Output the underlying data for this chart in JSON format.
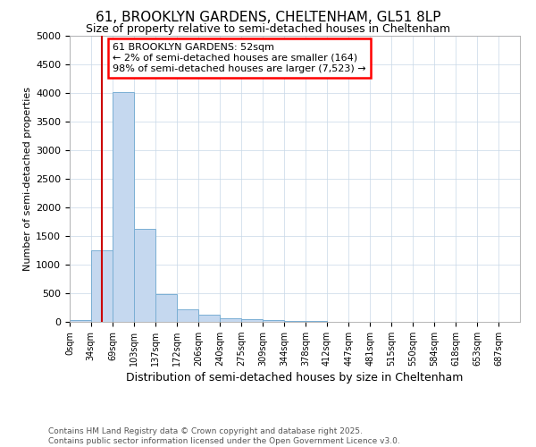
{
  "title1": "61, BROOKLYN GARDENS, CHELTENHAM, GL51 8LP",
  "title2": "Size of property relative to semi-detached houses in Cheltenham",
  "xlabel": "Distribution of semi-detached houses by size in Cheltenham",
  "ylabel": "Number of semi-detached properties",
  "footer1": "Contains HM Land Registry data © Crown copyright and database right 2025.",
  "footer2": "Contains public sector information licensed under the Open Government Licence v3.0.",
  "annotation_line1": "61 BROOKLYN GARDENS: 52sqm",
  "annotation_line2": "← 2% of semi-detached houses are smaller (164)",
  "annotation_line3": "98% of semi-detached houses are larger (7,523) →",
  "property_size": 52,
  "bin_edges": [
    0,
    34,
    69,
    103,
    137,
    172,
    206,
    240,
    275,
    309,
    344,
    378,
    412,
    447,
    481,
    515,
    550,
    584,
    618,
    653,
    687,
    721
  ],
  "bar_heights": [
    30,
    1250,
    4020,
    1620,
    480,
    215,
    130,
    70,
    50,
    30,
    15,
    8,
    5,
    3,
    2,
    1,
    1,
    0,
    0,
    0,
    0
  ],
  "bar_color": "#c5d8ef",
  "bar_edge_color": "#7aafd4",
  "property_line_color": "#cc0000",
  "ylim": [
    0,
    5000
  ],
  "yticks": [
    0,
    500,
    1000,
    1500,
    2000,
    2500,
    3000,
    3500,
    4000,
    4500,
    5000
  ],
  "xlim": [
    0,
    721
  ],
  "background_color": "#ffffff",
  "grid_color": "#c8d8e8"
}
